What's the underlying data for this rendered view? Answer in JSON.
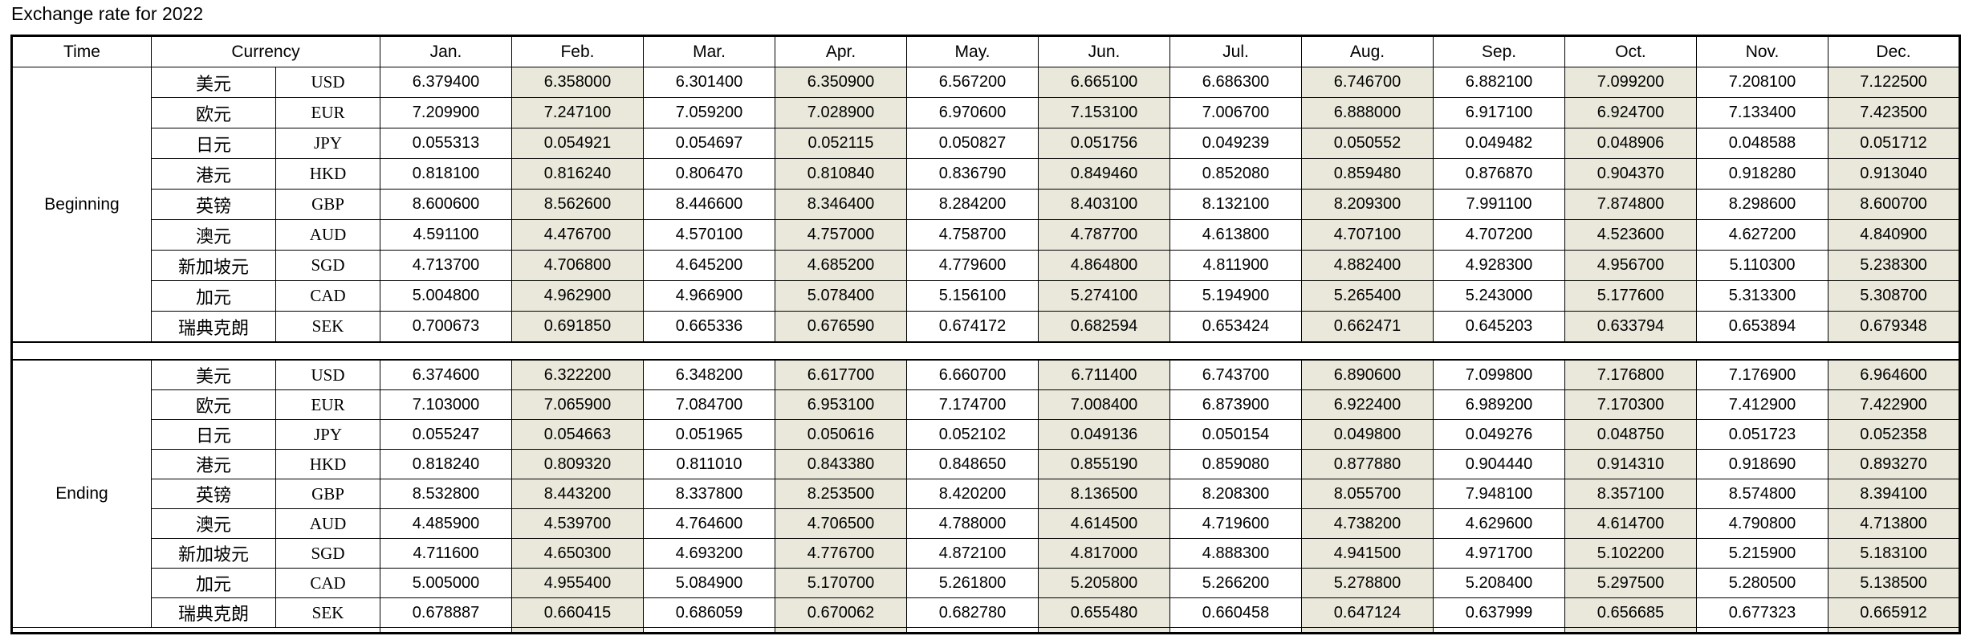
{
  "title": "Exchange rate for 2022",
  "colors": {
    "shaded_column": "#e9e8db",
    "border": "#000000",
    "background": "#ffffff"
  },
  "table": {
    "headers": {
      "time": "Time",
      "currency": "Currency",
      "months": [
        "Jan.",
        "Feb.",
        "Mar.",
        "Apr.",
        "May.",
        "Jun.",
        "Jul.",
        "Aug.",
        "Sep.",
        "Oct.",
        "Nov.",
        "Dec."
      ]
    },
    "sections": [
      {
        "label": "Beginning",
        "rows": [
          {
            "name_cn": "美元",
            "code": "USD",
            "values": [
              "6.379400",
              "6.358000",
              "6.301400",
              "6.350900",
              "6.567200",
              "6.665100",
              "6.686300",
              "6.746700",
              "6.882100",
              "7.099200",
              "7.208100",
              "7.122500"
            ]
          },
          {
            "name_cn": "欧元",
            "code": "EUR",
            "values": [
              "7.209900",
              "7.247100",
              "7.059200",
              "7.028900",
              "6.970600",
              "7.153100",
              "7.006700",
              "6.888000",
              "6.917100",
              "6.924700",
              "7.133400",
              "7.423500"
            ]
          },
          {
            "name_cn": "日元",
            "code": "JPY",
            "values": [
              "0.055313",
              "0.054921",
              "0.054697",
              "0.052115",
              "0.050827",
              "0.051756",
              "0.049239",
              "0.050552",
              "0.049482",
              "0.048906",
              "0.048588",
              "0.051712"
            ]
          },
          {
            "name_cn": "港元",
            "code": "HKD",
            "values": [
              "0.818100",
              "0.816240",
              "0.806470",
              "0.810840",
              "0.836790",
              "0.849460",
              "0.852080",
              "0.859480",
              "0.876870",
              "0.904370",
              "0.918280",
              "0.913040"
            ]
          },
          {
            "name_cn": "英镑",
            "code": "GBP",
            "values": [
              "8.600600",
              "8.562600",
              "8.446600",
              "8.346400",
              "8.284200",
              "8.403100",
              "8.132100",
              "8.209300",
              "7.991100",
              "7.874800",
              "8.298600",
              "8.600700"
            ]
          },
          {
            "name_cn": "澳元",
            "code": "AUD",
            "values": [
              "4.591100",
              "4.476700",
              "4.570100",
              "4.757000",
              "4.758700",
              "4.787700",
              "4.613800",
              "4.707100",
              "4.707200",
              "4.523600",
              "4.627200",
              "4.840900"
            ]
          },
          {
            "name_cn": "新加坡元",
            "code": "SGD",
            "values": [
              "4.713700",
              "4.706800",
              "4.645200",
              "4.685200",
              "4.779600",
              "4.864800",
              "4.811900",
              "4.882400",
              "4.928300",
              "4.956700",
              "5.110300",
              "5.238300"
            ]
          },
          {
            "name_cn": "加元",
            "code": "CAD",
            "values": [
              "5.004800",
              "4.962900",
              "4.966900",
              "5.078400",
              "5.156100",
              "5.274100",
              "5.194900",
              "5.265400",
              "5.243000",
              "5.177600",
              "5.313300",
              "5.308700"
            ]
          },
          {
            "name_cn": "瑞典克朗",
            "code": "SEK",
            "values": [
              "0.700673",
              "0.691850",
              "0.665336",
              "0.676590",
              "0.674172",
              "0.682594",
              "0.653424",
              "0.662471",
              "0.645203",
              "0.633794",
              "0.653894",
              "0.679348"
            ]
          }
        ]
      },
      {
        "label": "Ending",
        "rows": [
          {
            "name_cn": "美元",
            "code": "USD",
            "values": [
              "6.374600",
              "6.322200",
              "6.348200",
              "6.617700",
              "6.660700",
              "6.711400",
              "6.743700",
              "6.890600",
              "7.099800",
              "7.176800",
              "7.176900",
              "6.964600"
            ]
          },
          {
            "name_cn": "欧元",
            "code": "EUR",
            "values": [
              "7.103000",
              "7.065900",
              "7.084700",
              "6.953100",
              "7.174700",
              "7.008400",
              "6.873900",
              "6.922400",
              "6.989200",
              "7.170300",
              "7.412900",
              "7.422900"
            ]
          },
          {
            "name_cn": "日元",
            "code": "JPY",
            "values": [
              "0.055247",
              "0.054663",
              "0.051965",
              "0.050616",
              "0.052102",
              "0.049136",
              "0.050154",
              "0.049800",
              "0.049276",
              "0.048750",
              "0.051723",
              "0.052358"
            ]
          },
          {
            "name_cn": "港元",
            "code": "HKD",
            "values": [
              "0.818240",
              "0.809320",
              "0.811010",
              "0.843380",
              "0.848650",
              "0.855190",
              "0.859080",
              "0.877880",
              "0.904440",
              "0.914310",
              "0.918690",
              "0.893270"
            ]
          },
          {
            "name_cn": "英镑",
            "code": "GBP",
            "values": [
              "8.532800",
              "8.443200",
              "8.337800",
              "8.253500",
              "8.420200",
              "8.136500",
              "8.208300",
              "8.055700",
              "7.948100",
              "8.357100",
              "8.574800",
              "8.394100"
            ]
          },
          {
            "name_cn": "澳元",
            "code": "AUD",
            "values": [
              "4.485900",
              "4.539700",
              "4.764600",
              "4.706500",
              "4.788000",
              "4.614500",
              "4.719600",
              "4.738200",
              "4.629600",
              "4.614700",
              "4.790800",
              "4.713800"
            ]
          },
          {
            "name_cn": "新加坡元",
            "code": "SGD",
            "values": [
              "4.711600",
              "4.650300",
              "4.693200",
              "4.776700",
              "4.872100",
              "4.817000",
              "4.888300",
              "4.941500",
              "4.971700",
              "5.102200",
              "5.215900",
              "5.183100"
            ]
          },
          {
            "name_cn": "加元",
            "code": "CAD",
            "values": [
              "5.005000",
              "4.955400",
              "5.084900",
              "5.170700",
              "5.261800",
              "5.205800",
              "5.266200",
              "5.278800",
              "5.208400",
              "5.297500",
              "5.280500",
              "5.138500"
            ]
          },
          {
            "name_cn": "瑞典克朗",
            "code": "SEK",
            "values": [
              "0.678887",
              "0.660415",
              "0.686059",
              "0.670062",
              "0.682780",
              "0.655480",
              "0.660458",
              "0.647124",
              "0.637999",
              "0.656685",
              "0.677323",
              "0.665912"
            ]
          }
        ]
      }
    ]
  }
}
